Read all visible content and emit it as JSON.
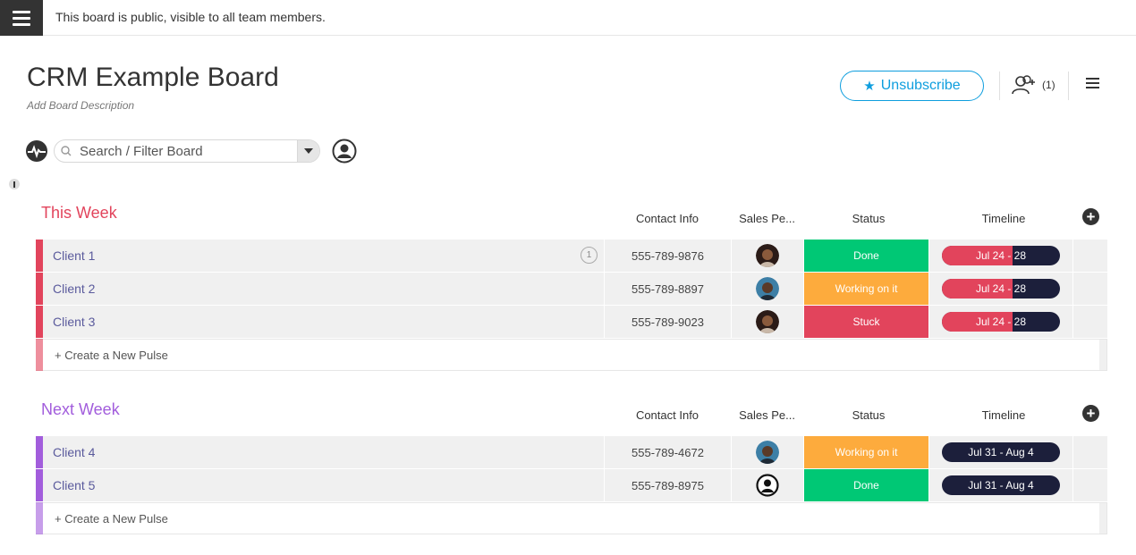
{
  "topbar": {
    "notice": "This board is public, visible to all team members."
  },
  "board": {
    "title": "CRM Example Board",
    "description": "Add Board Description",
    "unsubscribe_label": "Unsubscribe",
    "members_count": "(1)"
  },
  "search": {
    "placeholder": "Search / Filter Board"
  },
  "columns": {
    "contact": "Contact Info",
    "sales": "Sales Pe...",
    "status": "Status",
    "timeline": "Timeline"
  },
  "colors": {
    "done": "#00c875",
    "working": "#fdab3d",
    "stuck": "#e2445c",
    "this_week": "#e2445c",
    "next_week": "#a25ddc",
    "accent": "#0e9ede",
    "timeline_bg": "#1c1f3b"
  },
  "groups": [
    {
      "title": "This Week",
      "color": "#e2445c",
      "create_label": "+ Create a New Pulse",
      "rows": [
        {
          "name": "Client 1",
          "updates": "1",
          "contact": "555-789-9876",
          "avatar": "female-avatar",
          "status": "Done",
          "status_color": "#00c875",
          "timeline": "Jul 24 - 28",
          "timeline_progress": 0.6
        },
        {
          "name": "Client 2",
          "contact": "555-789-8897",
          "avatar": "male-avatar",
          "status": "Working on it",
          "status_color": "#fdab3d",
          "timeline": "Jul 24 - 28",
          "timeline_progress": 0.6
        },
        {
          "name": "Client 3",
          "contact": "555-789-9023",
          "avatar": "female-avatar",
          "status": "Stuck",
          "status_color": "#e2445c",
          "timeline": "Jul 24 - 28",
          "timeline_progress": 0.6
        }
      ]
    },
    {
      "title": "Next Week",
      "color": "#a25ddc",
      "create_label": "+ Create a New Pulse",
      "rows": [
        {
          "name": "Client 4",
          "contact": "555-789-4672",
          "avatar": "male-avatar",
          "status": "Working on it",
          "status_color": "#fdab3d",
          "timeline": "Jul 31 - Aug 4",
          "timeline_progress": 0
        },
        {
          "name": "Client 5",
          "contact": "555-789-8975",
          "avatar": "empty-user-icon",
          "status": "Done",
          "status_color": "#00c875",
          "timeline": "Jul 31 - Aug 4",
          "timeline_progress": 0
        }
      ]
    }
  ]
}
